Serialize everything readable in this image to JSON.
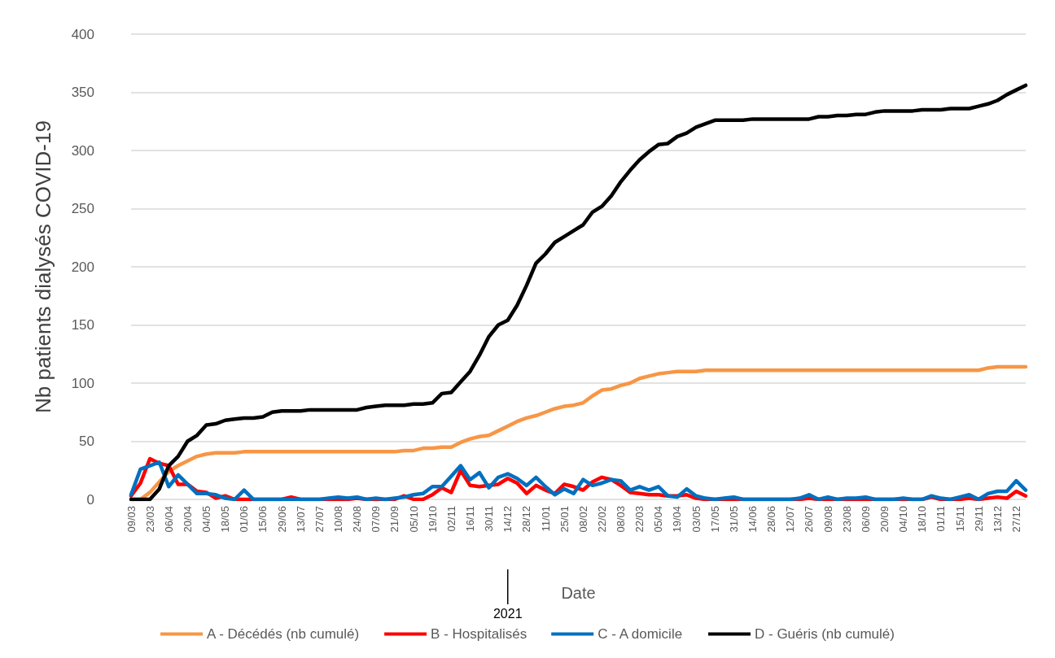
{
  "chart_data": {
    "type": "line",
    "xlabel": "Date",
    "ylabel": "Nb patients dialysés COVID-19",
    "categories": [
      "09/03",
      null,
      "23/03",
      null,
      "06/04",
      null,
      "20/04",
      null,
      "04/05",
      null,
      "18/05",
      null,
      "01/06",
      null,
      "15/06",
      null,
      "29/06",
      null,
      "13/07",
      null,
      "27/07",
      null,
      "10/08",
      null,
      "24/08",
      null,
      "07/09",
      null,
      "21/09",
      null,
      "05/10",
      null,
      "19/10",
      null,
      "02/11",
      null,
      "16/11",
      null,
      "30/11",
      null,
      "14/12",
      null,
      "28/12",
      null,
      "11/01",
      null,
      "25/01",
      null,
      "08/02",
      null,
      "22/02",
      null,
      "08/03",
      null,
      "22/03",
      null,
      "05/04",
      null,
      "19/04",
      null,
      "03/05",
      null,
      "17/05",
      null,
      "31/05",
      null,
      "14/06",
      null,
      "28/06",
      null,
      "12/07",
      null,
      "26/07",
      null,
      "09/08",
      null,
      "23/08",
      null,
      "06/09",
      null,
      "20/09",
      null,
      "04/10",
      null,
      "18/10",
      null,
      "01/11",
      null,
      "15/11",
      null,
      "29/11",
      null,
      "13/12",
      null,
      "27/12",
      null
    ],
    "series": [
      {
        "name": "A - Décédés (nb cumulé)",
        "color": "#f79646",
        "values": [
          0,
          0,
          6,
          15,
          24,
          29,
          33,
          37,
          39,
          40,
          40,
          40,
          41,
          41,
          41,
          41,
          41,
          41,
          41,
          41,
          41,
          41,
          41,
          41,
          41,
          41,
          41,
          41,
          41,
          42,
          42,
          44,
          44,
          45,
          45,
          49,
          52,
          54,
          55,
          59,
          63,
          67,
          70,
          72,
          75,
          78,
          80,
          81,
          83,
          89,
          94,
          95,
          98,
          100,
          104,
          106,
          108,
          109,
          110,
          110,
          110,
          111,
          111,
          111,
          111,
          111,
          111,
          111,
          111,
          111,
          111,
          111,
          111,
          111,
          111,
          111,
          111,
          111,
          111,
          111,
          111,
          111,
          111,
          111,
          111,
          111,
          111,
          111,
          111,
          111,
          111,
          113,
          114,
          114,
          114,
          114
        ]
      },
      {
        "name": "B - Hospitalisés",
        "color": "#ff0000",
        "values": [
          3,
          14,
          35,
          31,
          29,
          13,
          13,
          7,
          6,
          1,
          3,
          0,
          0,
          0,
          0,
          0,
          0,
          2,
          0,
          0,
          0,
          0,
          0,
          0,
          1,
          0,
          0,
          0,
          0,
          3,
          0,
          0,
          4,
          10,
          6,
          25,
          12,
          11,
          12,
          13,
          18,
          14,
          5,
          12,
          8,
          5,
          13,
          11,
          8,
          15,
          19,
          17,
          12,
          6,
          5,
          4,
          4,
          3,
          3,
          4,
          1,
          0,
          0,
          0,
          0,
          0,
          0,
          0,
          0,
          0,
          0,
          0,
          1,
          0,
          0,
          0,
          0,
          0,
          0,
          0,
          0,
          0,
          0,
          0,
          0,
          2,
          0,
          0,
          0,
          1,
          0,
          1,
          2,
          1,
          7,
          3
        ]
      },
      {
        "name": "C - A domicile",
        "color": "#0070c0",
        "values": [
          4,
          26,
          29,
          32,
          11,
          21,
          13,
          5,
          5,
          4,
          1,
          0,
          8,
          0,
          0,
          0,
          0,
          0,
          0,
          0,
          0,
          1,
          2,
          1,
          2,
          0,
          1,
          0,
          1,
          2,
          4,
          5,
          11,
          11,
          20,
          29,
          17,
          23,
          10,
          19,
          22,
          18,
          12,
          19,
          11,
          4,
          9,
          5,
          17,
          12,
          14,
          17,
          16,
          8,
          11,
          8,
          11,
          3,
          2,
          9,
          3,
          1,
          0,
          1,
          2,
          0,
          0,
          0,
          0,
          0,
          0,
          1,
          4,
          0,
          2,
          0,
          1,
          1,
          2,
          0,
          0,
          0,
          1,
          0,
          0,
          3,
          1,
          0,
          2,
          4,
          0,
          5,
          7,
          7,
          16,
          8
        ]
      },
      {
        "name": "D - Guéris (nb cumulé)",
        "color": "#000000",
        "values": [
          0,
          0,
          0,
          9,
          29,
          37,
          50,
          55,
          64,
          65,
          68,
          69,
          70,
          70,
          71,
          75,
          76,
          76,
          76,
          77,
          77,
          77,
          77,
          77,
          77,
          79,
          80,
          81,
          81,
          81,
          82,
          82,
          83,
          91,
          92,
          101,
          110,
          124,
          140,
          150,
          154,
          167,
          184,
          203,
          211,
          221,
          226,
          231,
          236,
          247,
          252,
          261,
          273,
          283,
          292,
          299,
          305,
          306,
          312,
          315,
          320,
          323,
          326,
          326,
          326,
          326,
          327,
          327,
          327,
          327,
          327,
          327,
          327,
          329,
          329,
          330,
          330,
          331,
          331,
          333,
          334,
          334,
          334,
          334,
          335,
          335,
          335,
          336,
          336,
          336,
          338,
          340,
          343,
          348,
          352,
          356
        ]
      }
    ],
    "ylim": [
      0,
      400
    ],
    "yticks": [
      0,
      50,
      100,
      150,
      200,
      250,
      300,
      350,
      400
    ],
    "grid": "y",
    "legend": "bottom",
    "marker": "none",
    "line_style": "solid",
    "annotations": [
      {
        "text": "2021",
        "x": "14/12"
      }
    ]
  }
}
